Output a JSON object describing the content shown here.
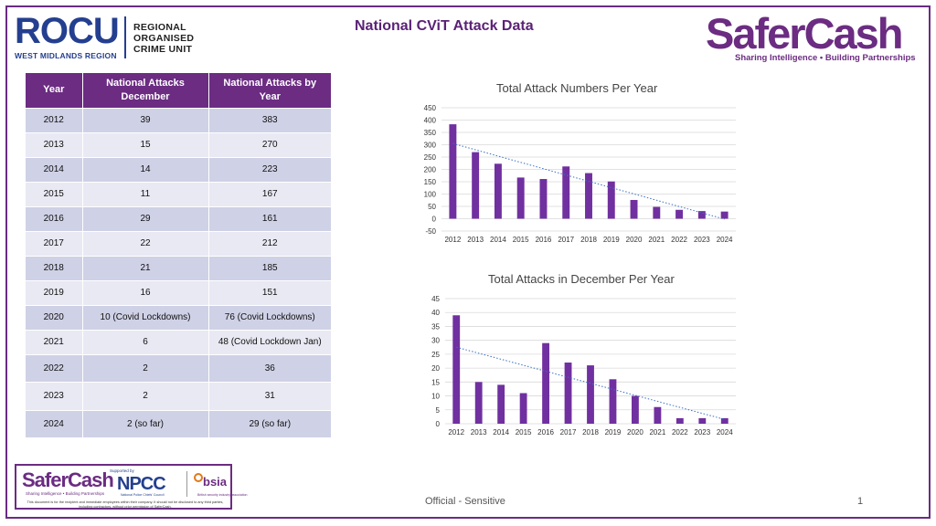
{
  "header": {
    "rocu_word": "ROCU",
    "rocu_sub": "WEST MIDLANDS REGION",
    "rocu_line1": "REGIONAL",
    "rocu_line2": "ORGANISED",
    "rocu_line3": "CRIME UNIT",
    "title": "National CViT Attack Data",
    "safercash_word": "SaferCash",
    "safercash_tagline": "Sharing Intelligence • Building Partnerships"
  },
  "table": {
    "headers": [
      "Year",
      "National Attacks December",
      "National Attacks by Year"
    ],
    "rows": [
      [
        "2012",
        "39",
        "383"
      ],
      [
        "2013",
        "15",
        "270"
      ],
      [
        "2014",
        "14",
        "223"
      ],
      [
        "2015",
        "11",
        "167"
      ],
      [
        "2016",
        "29",
        "161"
      ],
      [
        "2017",
        "22",
        "212"
      ],
      [
        "2018",
        "21",
        "185"
      ],
      [
        "2019",
        "16",
        "151"
      ],
      [
        "2020",
        "10 (Covid Lockdowns)",
        "76 (Covid Lockdowns)"
      ],
      [
        "2021",
        "6",
        "48 (Covid Lockdown Jan)"
      ],
      [
        "2022",
        "2",
        "36"
      ],
      [
        "2023",
        "2",
        "31"
      ],
      [
        "2024",
        "2 (so far)",
        "29 (so far)"
      ]
    ]
  },
  "chart_data": [
    {
      "type": "bar",
      "title": "Total Attack Numbers Per Year",
      "categories": [
        "2012",
        "2013",
        "2014",
        "2015",
        "2016",
        "2017",
        "2018",
        "2019",
        "2020",
        "2021",
        "2022",
        "2023",
        "2024"
      ],
      "values": [
        383,
        270,
        223,
        167,
        161,
        212,
        185,
        151,
        76,
        48,
        36,
        31,
        29
      ],
      "ylim": [
        -50,
        450
      ],
      "yticks": [
        450,
        400,
        350,
        300,
        250,
        200,
        150,
        100,
        50,
        0,
        -50
      ],
      "trendline": "linear",
      "bar_color": "#7030a0",
      "xlabel": "",
      "ylabel": ""
    },
    {
      "type": "bar",
      "title": "Total Attacks in December Per Year",
      "categories": [
        "2012",
        "2013",
        "2014",
        "2015",
        "2016",
        "2017",
        "2018",
        "2019",
        "2020",
        "2021",
        "2022",
        "2023",
        "2024"
      ],
      "values": [
        39,
        15,
        14,
        11,
        29,
        22,
        21,
        16,
        10,
        6,
        2,
        2,
        2
      ],
      "ylim": [
        0,
        45
      ],
      "yticks": [
        45,
        40,
        35,
        30,
        25,
        20,
        15,
        10,
        5,
        0
      ],
      "trendline": "linear",
      "bar_color": "#7030a0",
      "xlabel": "",
      "ylabel": ""
    }
  ],
  "footer": {
    "logo_safercash": "SaferCash",
    "logo_tagline": "Sharing Intelligence • Building Partnerships",
    "supported_by": "Supported by",
    "npcc": "NPCC",
    "npcc_sub": "National Police Chiefs' Council",
    "bsia": "bsia",
    "bsia_sub": "British security industry association",
    "note": "This document is for the recipient and immediate employees within their company. It should not be disclosed to any third parties, including contractors, without prior permission of SaferCash.",
    "classification": "Official - Sensitive",
    "page_number": "1"
  }
}
